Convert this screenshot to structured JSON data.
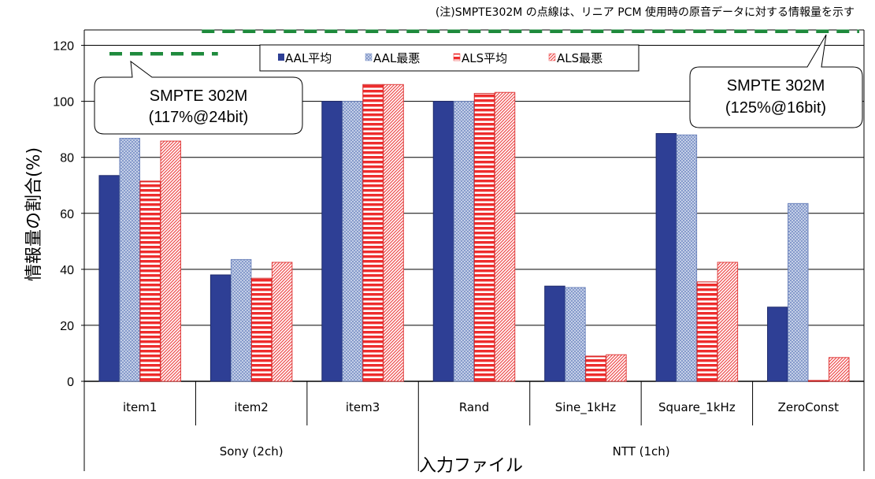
{
  "chart_data": {
    "type": "bar",
    "categories": [
      "item1",
      "item2",
      "item3",
      "Rand",
      "Sine_1kHz",
      "Square_1kHz",
      "ZeroConst"
    ],
    "groups": [
      {
        "label": "Sony (2ch)",
        "categories": [
          "item1",
          "item2",
          "item3"
        ]
      },
      {
        "label": "NTT (1ch)",
        "categories": [
          "Rand",
          "Sine_1kHz",
          "Square_1kHz",
          "ZeroConst"
        ]
      }
    ],
    "series": [
      {
        "name": "AAL平均",
        "color": "#2E3F95",
        "pattern": "solid",
        "values": [
          73.5,
          38.0,
          100.0,
          100.0,
          34.0,
          88.5,
          26.5
        ]
      },
      {
        "name": "AAL最悪",
        "color": "#A3B5DC",
        "pattern": "crosshatch",
        "values": [
          86.8,
          43.5,
          100.0,
          100.0,
          33.5,
          88.0,
          63.5
        ]
      },
      {
        "name": "ALS平均",
        "color": "#EE3A3A",
        "pattern": "horizontal-stripes",
        "values": [
          71.5,
          36.8,
          106.0,
          102.8,
          9.0,
          35.5,
          0.3
        ]
      },
      {
        "name": "ALS最悪",
        "color": "#F07070",
        "pattern": "diagonal-hatch",
        "values": [
          85.8,
          42.5,
          106.0,
          103.2,
          9.5,
          42.5,
          8.5
        ]
      }
    ],
    "ylabel": "情報量の割合(%)",
    "xlabel": "入力ファイル",
    "ylim": [
      0,
      120
    ],
    "yticks": [
      0,
      20,
      40,
      60,
      80,
      100,
      120
    ],
    "grid": true,
    "legend_position": "top-center",
    "reference_lines": [
      {
        "label": "SMPTE 302M",
        "sublabel": "(117%@24bit)",
        "value": 117,
        "style": "dashed",
        "color": "#1E8A3C",
        "span": "Sony (2ch)"
      },
      {
        "label": "SMPTE 302M",
        "sublabel": "(125%@16bit)",
        "value": 125,
        "style": "dashed",
        "color": "#1E8A3C",
        "span": "NTT (1ch)"
      }
    ],
    "note": "(注)SMPTE302M の点線は、リニア PCM 使用時の原音データに対する情報量を示す"
  }
}
